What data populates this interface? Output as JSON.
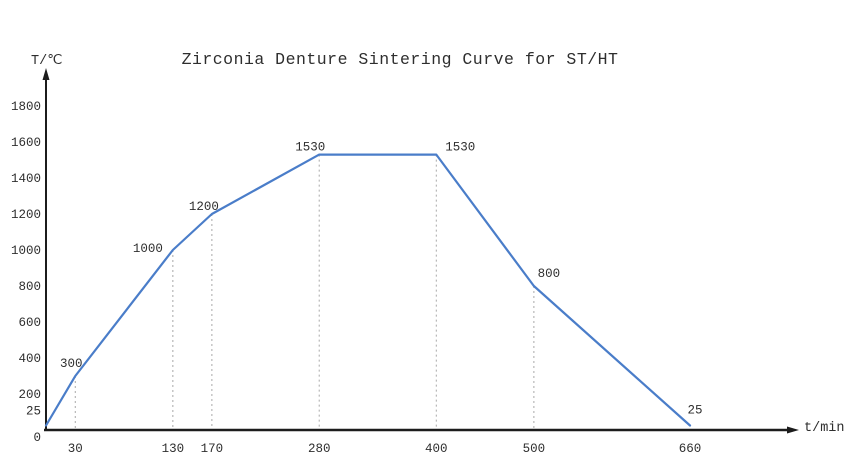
{
  "chart_data": {
    "type": "line",
    "title": "Zirconia Denture Sintering Curve for ST/HT",
    "xlabel": "t/min",
    "ylabel": "T/℃",
    "xlim": [
      0,
      660
    ],
    "ylim": [
      0,
      1800
    ],
    "grid": false,
    "legend": "none",
    "axis_color": "#1c1c1c",
    "text_color": "#2e2e2e",
    "guide_line_color": "#a8a8a8",
    "series": [
      {
        "name": "sintering-profile",
        "color": "#4a7dc9",
        "points": [
          {
            "t": 0,
            "T": 25,
            "label": null,
            "guide": false
          },
          {
            "t": 30,
            "T": 300,
            "label": "300",
            "guide": true,
            "label_dx": -4,
            "label_dy": -9
          },
          {
            "t": 130,
            "T": 1000,
            "label": "1000",
            "guide": true,
            "label_dx": -25,
            "label_dy": 2
          },
          {
            "t": 170,
            "T": 1200,
            "label": "1200",
            "guide": true,
            "label_dx": -8,
            "label_dy": -4
          },
          {
            "t": 280,
            "T": 1530,
            "label": "1530",
            "guide": true,
            "label_dx": -9,
            "label_dy": -4
          },
          {
            "t": 400,
            "T": 1530,
            "label": "1530",
            "guide": true,
            "label_dx": 24,
            "label_dy": -4
          },
          {
            "t": 500,
            "T": 800,
            "label": "800",
            "guide": true,
            "label_dx": 15,
            "label_dy": -9
          },
          {
            "t": 660,
            "T": 25,
            "label": "25",
            "guide": false,
            "label_dx": 5,
            "label_dy": -12
          }
        ]
      }
    ],
    "xticks": [
      {
        "v": 30,
        "label": "30"
      },
      {
        "v": 130,
        "label": "130"
      },
      {
        "v": 170,
        "label": "170"
      },
      {
        "v": 280,
        "label": "280"
      },
      {
        "v": 400,
        "label": "400"
      },
      {
        "v": 500,
        "label": "500"
      },
      {
        "v": 660,
        "label": "660"
      }
    ],
    "yticks": [
      {
        "v": 0,
        "label": "0",
        "dy": 11
      },
      {
        "v": 25,
        "label": "25",
        "dy": -11
      },
      {
        "v": 200,
        "label": "200"
      },
      {
        "v": 400,
        "label": "400"
      },
      {
        "v": 600,
        "label": "600"
      },
      {
        "v": 800,
        "label": "800"
      },
      {
        "v": 1000,
        "label": "1000"
      },
      {
        "v": 1200,
        "label": "1200"
      },
      {
        "v": 1400,
        "label": "1400"
      },
      {
        "v": 1600,
        "label": "1600"
      },
      {
        "v": 1800,
        "label": "1800"
      }
    ]
  }
}
